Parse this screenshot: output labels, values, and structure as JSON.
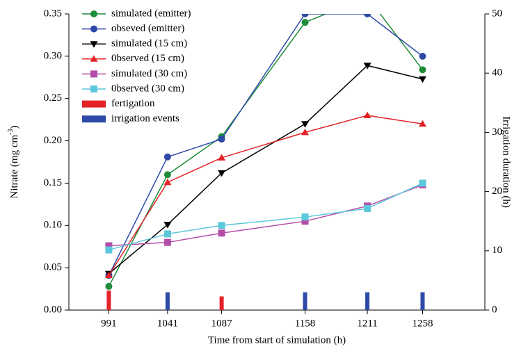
{
  "chart_data": {
    "type": "line",
    "xlabel": "Time from start of simulation (h)",
    "ylabel": {
      "text": "Nitrate (mg cm",
      "sup": "-3",
      "tail": ")"
    },
    "y2label": "Irrigation duration (h)",
    "x": [
      991,
      1041,
      1087,
      1158,
      1211,
      1258
    ],
    "xlim": [
      957,
      1311
    ],
    "xticks": [
      991,
      1041,
      1087,
      1158,
      1211,
      1258
    ],
    "ylim": [
      0,
      0.35
    ],
    "yticks": [
      {
        "value": 0,
        "label": "0.00"
      },
      {
        "value": 0.05,
        "label": "0.05"
      },
      {
        "value": 0.1,
        "label": "0.10"
      },
      {
        "value": 0.15,
        "label": "0.15"
      },
      {
        "value": 0.2,
        "label": "0.20"
      },
      {
        "value": 0.25,
        "label": "0.25"
      },
      {
        "value": 0.3,
        "label": "0.30"
      },
      {
        "value": 0.35,
        "label": "0.35"
      }
    ],
    "y2lim": [
      0,
      50
    ],
    "y2ticks": [
      0,
      10,
      20,
      30,
      40,
      50
    ],
    "series": [
      {
        "name": "simulated (emitter)",
        "color": "#1e8c3a",
        "marker": "circle",
        "values": [
          0.028,
          0.16,
          0.205,
          0.34,
          0.37,
          0.284
        ]
      },
      {
        "name": "obseved (emitter)",
        "color": "#2e4aa8",
        "marker": "circle",
        "values": [
          0.041,
          0.181,
          0.202,
          0.35,
          0.35,
          0.3
        ]
      },
      {
        "name": "simulated (15 cm)",
        "color": "#000000",
        "marker": "triangle-down",
        "values": [
          0.043,
          0.101,
          0.162,
          0.22,
          0.289,
          0.273
        ]
      },
      {
        "name": "0bserved (15 cm)",
        "color": "#e32228",
        "marker": "triangle-up",
        "values": [
          0.041,
          0.151,
          0.18,
          0.21,
          0.23,
          0.22
        ]
      },
      {
        "name": "simulated (30 cm)",
        "color": "#b24ea8",
        "marker": "square",
        "values": [
          0.076,
          0.08,
          0.091,
          0.105,
          0.123,
          0.148
        ]
      },
      {
        "name": "0bserved (30 cm)",
        "color": "#5cc8dc",
        "marker": "square",
        "values": [
          0.071,
          0.09,
          0.1,
          0.11,
          0.12,
          0.15
        ]
      }
    ],
    "bar_series": [
      {
        "name": "fertigation",
        "color": "#e32228",
        "axis": "y2",
        "x": [
          991,
          1087
        ],
        "values": [
          3.3,
          2.3
        ]
      },
      {
        "name": "irrigation events",
        "color": "#2e4aa8",
        "axis": "y2",
        "x": [
          1041,
          1158,
          1211,
          1258
        ],
        "values": [
          3,
          3,
          3,
          3
        ]
      }
    ]
  }
}
